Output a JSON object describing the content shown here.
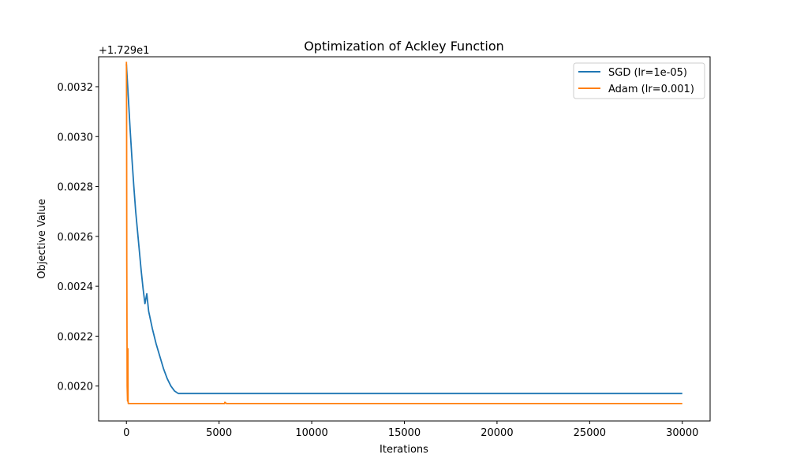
{
  "chart_data": {
    "type": "line",
    "title": "Optimization of Ackley Function",
    "xlabel": "Iterations",
    "ylabel": "Objective Value",
    "y_offset_label": "+1.729e1",
    "xlim": [
      -1500,
      31500
    ],
    "ylim": [
      0.00186,
      0.00332
    ],
    "xticks": [
      0,
      5000,
      10000,
      15000,
      20000,
      25000,
      30000
    ],
    "xtick_labels": [
      "0",
      "5000",
      "10000",
      "15000",
      "20000",
      "25000",
      "30000"
    ],
    "yticks": [
      0.002,
      0.0022,
      0.0024,
      0.0026,
      0.0028,
      0.003,
      0.0032
    ],
    "ytick_labels": [
      "0.0020",
      "0.0022",
      "0.0024",
      "0.0026",
      "0.0028",
      "0.0030",
      "0.0032"
    ],
    "grid": false,
    "legend_position": "top-right",
    "series": [
      {
        "name": "SGD (lr=1e-05)",
        "color": "#1f77b4",
        "x": [
          0,
          100,
          200,
          300,
          400,
          500,
          600,
          700,
          800,
          900,
          1000,
          1100,
          1200,
          1400,
          1600,
          1800,
          2000,
          2200,
          2400,
          2600,
          2800,
          3000,
          5000,
          10000,
          15000,
          20000,
          25000,
          30000
        ],
        "y": [
          0.00329,
          0.00316,
          0.00303,
          0.00291,
          0.0028,
          0.0027,
          0.00262,
          0.00254,
          0.00246,
          0.00239,
          0.00233,
          0.00237,
          0.0023,
          0.00223,
          0.00217,
          0.00212,
          0.00207,
          0.00203,
          0.002,
          0.00198,
          0.00197,
          0.00197,
          0.00197,
          0.00197,
          0.00197,
          0.00197,
          0.00197,
          0.00197
        ]
      },
      {
        "name": "Adam (lr=0.001)",
        "color": "#ff7f0e",
        "x": [
          0,
          10,
          20,
          40,
          60,
          80,
          90,
          100,
          120,
          150,
          200,
          500,
          1000,
          5000,
          5300,
          5310,
          5400,
          10000,
          15000,
          20000,
          25000,
          30000
        ],
        "y": [
          0.0033,
          0.0031,
          0.0025,
          0.002,
          0.00194,
          0.00215,
          0.00194,
          0.00193,
          0.00193,
          0.00193,
          0.00193,
          0.00193,
          0.00193,
          0.00193,
          0.00193,
          0.001935,
          0.00193,
          0.00193,
          0.00193,
          0.00193,
          0.00193,
          0.00193
        ]
      }
    ]
  }
}
